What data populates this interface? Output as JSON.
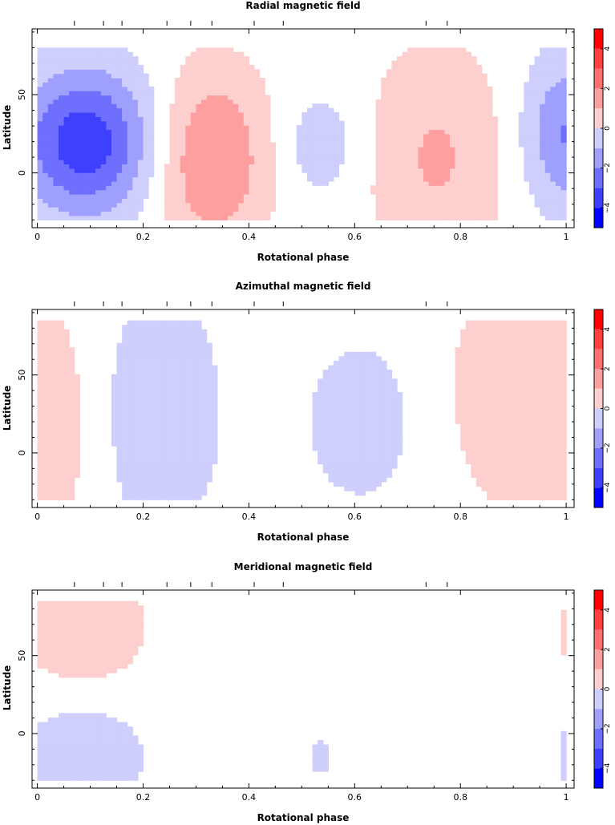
{
  "colors": {
    "pos": [
      "#ffffff",
      "#fdcfcf",
      "#fe9f9f",
      "#fe6f6f",
      "#fe3f3f",
      "#ff0000"
    ],
    "neg": [
      "#ffffff",
      "#cfcffd",
      "#9f9ffe",
      "#6f6ffe",
      "#3f3ffe",
      "#0000ff"
    ],
    "frame": "#000000"
  },
  "x_ticks": [
    0,
    0.2,
    0.4,
    0.6,
    0.8,
    1
  ],
  "x_tick_labels": [
    "0",
    "0.2",
    "0.4",
    "0.6",
    "0.8",
    "1"
  ],
  "y_ticks": [
    0,
    50
  ],
  "y_tick_labels": [
    "0",
    "50"
  ],
  "colorbar_labels": [
    "4",
    "2",
    "0",
    "−2",
    "−4"
  ],
  "colorbar_levels": [
    4,
    2,
    0,
    -2,
    -4
  ],
  "observation_phases": [
    0.07,
    0.125,
    0.16,
    0.245,
    0.29,
    0.33,
    0.41,
    0.465,
    0.735,
    0.775
  ],
  "chart_data": [
    {
      "type": "heatmap",
      "title": "Radial magnetic field",
      "xlabel": "Rotational phase",
      "ylabel": "Latitude",
      "xlim": [
        -0.01,
        1.015
      ],
      "ylim": [
        -35,
        92
      ],
      "zlim": [
        -5,
        5
      ],
      "lat_range": [
        -30,
        80
      ],
      "components": [
        {
          "phase": 0.09,
          "lat": 20,
          "sigma_phase": 0.09,
          "sigma_lat": 33,
          "amp": -4.2
        },
        {
          "phase": 0.33,
          "lat": 10,
          "sigma_phase": 0.075,
          "sigma_lat": 40,
          "amp": 2.6
        },
        {
          "phase": 0.535,
          "lat": 18,
          "sigma_phase": 0.055,
          "sigma_lat": 24,
          "amp": -1.1
        },
        {
          "phase": 0.755,
          "lat": 10,
          "sigma_phase": 0.09,
          "sigma_lat": 50,
          "amp": 1.6
        },
        {
          "phase": 1.005,
          "lat": 25,
          "sigma_phase": 0.06,
          "sigma_lat": 35,
          "amp": -2.6
        }
      ]
    },
    {
      "type": "heatmap",
      "title": "Azimuthal magnetic field",
      "xlabel": "Rotational phase",
      "ylabel": "Latitude",
      "xlim": [
        -0.01,
        1.015
      ],
      "ylim": [
        -35,
        92
      ],
      "zlim": [
        -5,
        5
      ],
      "lat_range": [
        -30,
        85
      ],
      "components": [
        {
          "phase": 0.005,
          "lat": 20,
          "sigma_phase": 0.08,
          "sigma_lat": 60,
          "amp": 1.15
        },
        {
          "phase": 0.23,
          "lat": 25,
          "sigma_phase": 0.08,
          "sigma_lat": 55,
          "amp": -1.4
        },
        {
          "phase": 0.61,
          "lat": 20,
          "sigma_phase": 0.07,
          "sigma_lat": 35,
          "amp": -1.2
        },
        {
          "phase": 0.93,
          "lat": 40,
          "sigma_phase": 0.1,
          "sigma_lat": 55,
          "amp": 1.45
        }
      ]
    },
    {
      "type": "heatmap",
      "title": "Meridional magnetic field",
      "xlabel": "Rotational phase",
      "ylabel": "Latitude",
      "xlim": [
        -0.01,
        1.015
      ],
      "ylim": [
        -35,
        92
      ],
      "zlim": [
        -5,
        5
      ],
      "lat_range": [
        -30,
        85
      ],
      "components": [
        {
          "phase": 0.085,
          "lat": 68,
          "sigma_phase": 0.085,
          "sigma_lat": 30,
          "amp": 1.3
        },
        {
          "phase": 0.085,
          "lat": -15,
          "sigma_phase": 0.085,
          "sigma_lat": 28,
          "amp": -1.25
        },
        {
          "phase": 0.535,
          "lat": -15,
          "sigma_phase": 0.016,
          "sigma_lat": 9,
          "amp": -0.9
        },
        {
          "phase": 1.01,
          "lat": 65,
          "sigma_phase": 0.02,
          "sigma_lat": 20,
          "amp": 0.9
        },
        {
          "phase": 1.01,
          "lat": -15,
          "sigma_phase": 0.02,
          "sigma_lat": 20,
          "amp": -0.9
        }
      ]
    }
  ]
}
